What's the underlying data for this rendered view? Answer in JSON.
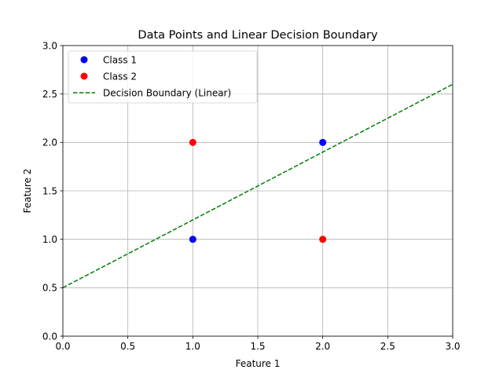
{
  "chart_data": {
    "type": "scatter",
    "title": "Data Points and Linear Decision Boundary",
    "xlabel": "Feature 1",
    "ylabel": "Feature 2",
    "xlim": [
      0.0,
      3.0
    ],
    "ylim": [
      0.0,
      3.0
    ],
    "xticks": [
      "0.0",
      "0.5",
      "1.0",
      "1.5",
      "2.0",
      "2.5",
      "3.0"
    ],
    "yticks": [
      "0.0",
      "0.5",
      "1.0",
      "1.5",
      "2.0",
      "2.5",
      "3.0"
    ],
    "grid": true,
    "legend_position": "top-left",
    "series": [
      {
        "name": "Class 1",
        "kind": "scatter",
        "color": "#0000ff",
        "points": [
          [
            1.0,
            1.0
          ],
          [
            2.0,
            2.0
          ]
        ]
      },
      {
        "name": "Class 2",
        "kind": "scatter",
        "color": "#ff0000",
        "points": [
          [
            1.0,
            2.0
          ],
          [
            2.0,
            1.0
          ]
        ]
      },
      {
        "name": "Decision Boundary (Linear)",
        "kind": "line",
        "style": "dashed",
        "color": "#008000",
        "points": [
          [
            0.0,
            0.5
          ],
          [
            3.0,
            2.6
          ]
        ]
      }
    ]
  }
}
